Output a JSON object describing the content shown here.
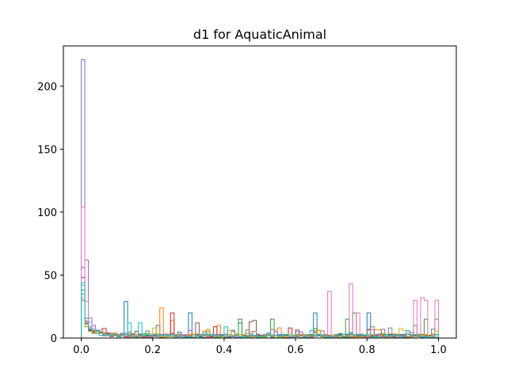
{
  "chart_data": {
    "type": "histogram-step",
    "title": "d1 for AquaticAnimal",
    "xlabel": "",
    "ylabel": "",
    "xlim": [
      -0.05,
      1.05
    ],
    "ylim": [
      0,
      232
    ],
    "x_ticks": [
      0.0,
      0.2,
      0.4,
      0.6,
      0.8,
      1.0
    ],
    "x_tick_labels": [
      "0.0",
      "0.2",
      "0.4",
      "0.6",
      "0.8",
      "1.0"
    ],
    "y_ticks": [
      0,
      50,
      100,
      150,
      200
    ],
    "y_tick_labels": [
      "0",
      "50",
      "100",
      "150",
      "200"
    ],
    "grid": false,
    "bin_width": 0.01,
    "series": [
      {
        "color": "#1f77b4",
        "peak_at_zero": 56,
        "spikes": [
          [
            0.12,
            29
          ],
          [
            0.3,
            20
          ],
          [
            0.65,
            20
          ],
          [
            0.8,
            20
          ],
          [
            0.44,
            12
          ],
          [
            0.21,
            10
          ]
        ]
      },
      {
        "color": "#ff7f0e",
        "peak_at_zero": 42,
        "spikes": [
          [
            0.22,
            24
          ],
          [
            0.25,
            14
          ],
          [
            0.38,
            10
          ],
          [
            0.55,
            8
          ]
        ]
      },
      {
        "color": "#2ca02c",
        "peak_at_zero": 38,
        "spikes": [
          [
            0.44,
            15
          ],
          [
            0.53,
            15
          ],
          [
            0.74,
            15
          ],
          [
            0.76,
            20
          ],
          [
            0.96,
            15
          ],
          [
            0.99,
            15
          ],
          [
            0.93,
            10
          ]
        ]
      },
      {
        "color": "#d62728",
        "peak_at_zero": 48,
        "spikes": [
          [
            0.25,
            20
          ],
          [
            0.37,
            9
          ],
          [
            0.58,
            8
          ]
        ]
      },
      {
        "color": "#9467bd",
        "peak_at_zero": 221,
        "spikes": [
          [
            0.3,
            6
          ],
          [
            0.6,
            5
          ]
        ]
      },
      {
        "color": "#8c564b",
        "peak_at_zero": 30,
        "spikes": [
          [
            0.32,
            12
          ],
          [
            0.47,
            13
          ],
          [
            0.48,
            14
          ]
        ]
      },
      {
        "color": "#e377c2",
        "peak_at_zero": 104,
        "spikes": [
          [
            0.69,
            37
          ],
          [
            0.75,
            43
          ],
          [
            0.77,
            20
          ],
          [
            0.93,
            30
          ],
          [
            0.95,
            32
          ],
          [
            0.96,
            30
          ],
          [
            1.0,
            30
          ]
        ]
      },
      {
        "color": "#7f7f7f",
        "peak_at_zero": 35,
        "spikes": [
          [
            0.81,
            9
          ],
          [
            0.84,
            7
          ],
          [
            0.86,
            8
          ]
        ]
      },
      {
        "color": "#bcbd22",
        "peak_at_zero": 32,
        "spikes": [
          [
            0.2,
            8
          ],
          [
            0.35,
            7
          ],
          [
            0.9,
            6
          ]
        ]
      },
      {
        "color": "#17becf",
        "peak_at_zero": 44,
        "spikes": [
          [
            0.13,
            12
          ],
          [
            0.16,
            12
          ],
          [
            0.4,
            9
          ],
          [
            0.64,
            6
          ]
        ]
      }
    ]
  }
}
